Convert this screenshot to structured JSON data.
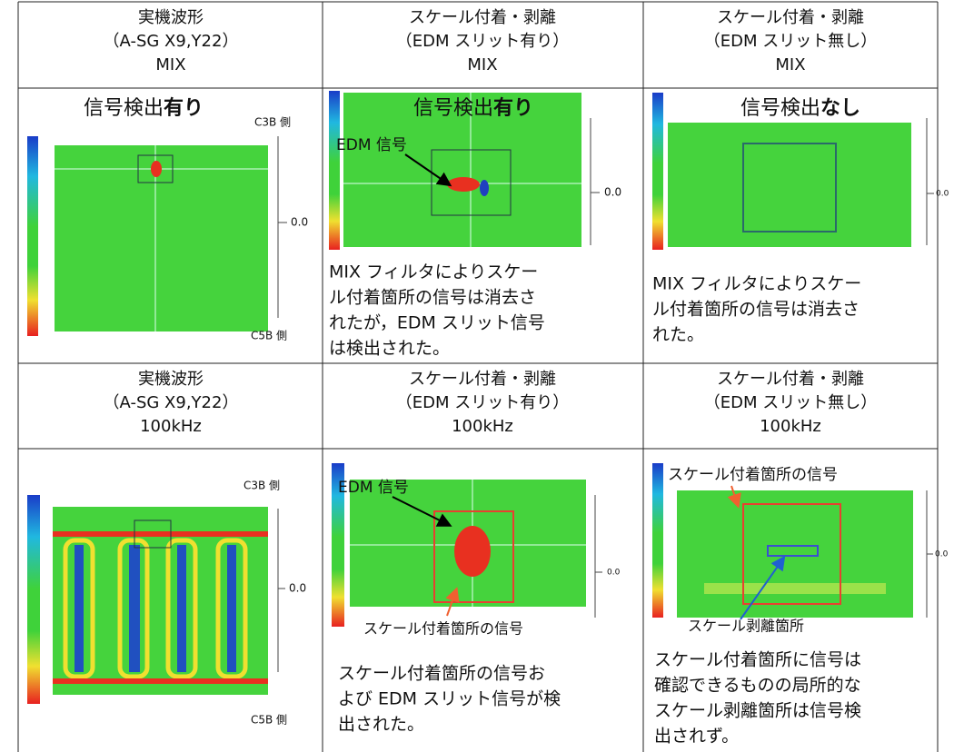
{
  "table": {
    "rows": [
      [
        {
          "lines": [
            "実機波形",
            "（A-SG X9,Y22）",
            "MIX"
          ]
        },
        {
          "lines": [
            "スケール付着・剥離",
            "（EDM スリット有り）",
            "MIX"
          ]
        },
        {
          "lines": [
            "スケール付着・剥離",
            "（EDM スリット無し）",
            "MIX"
          ]
        }
      ],
      [
        {
          "heading": [
            "信号検出",
            "有り"
          ],
          "top_label": "C3B 側",
          "axis_label": "0.0",
          "bottom_label": "C5B 側"
        },
        {
          "heading": [
            "信号検出",
            "有り"
          ],
          "callout": "EDM 信号",
          "axis_label": "0.0",
          "note": [
            "MIX フィルタによりスケー",
            "ル付着箇所の信号は消去さ",
            "れたが，EDM スリット信号",
            "は検出された。"
          ]
        },
        {
          "heading": [
            "信号検出",
            "なし"
          ],
          "axis_label": "0.0",
          "note": [
            "MIX フィルタによりスケー",
            "ル付着箇所の信号は消去さ",
            "れた。"
          ]
        }
      ],
      [
        {
          "lines": [
            "実機波形",
            "（A-SG X9,Y22）",
            "100kHz"
          ]
        },
        {
          "lines": [
            "スケール付着・剥離",
            "（EDM スリット有り）",
            "100kHz"
          ]
        },
        {
          "lines": [
            "スケール付着・剥離",
            "（EDM スリット無し）",
            "100kHz"
          ]
        }
      ],
      [
        {
          "top_label": "C3B 側",
          "axis_label": "0.0",
          "bottom_label": "C5B 側"
        },
        {
          "callout": "EDM 信号",
          "axis_label": "0.0",
          "callout2": "スケール付着箇所の信号",
          "note": [
            "スケール付着箇所の信号お",
            "よび EDM スリット信号が検",
            "出された。"
          ]
        },
        {
          "callout": "スケール付着箇所の信号",
          "callout2": "スケール剥離箇所",
          "axis_label": "0.0",
          "note": [
            "スケール付着箇所に信号は",
            "確認できるものの局所的な",
            "スケール剥離箇所は信号検",
            "出されず。"
          ]
        }
      ]
    ]
  }
}
